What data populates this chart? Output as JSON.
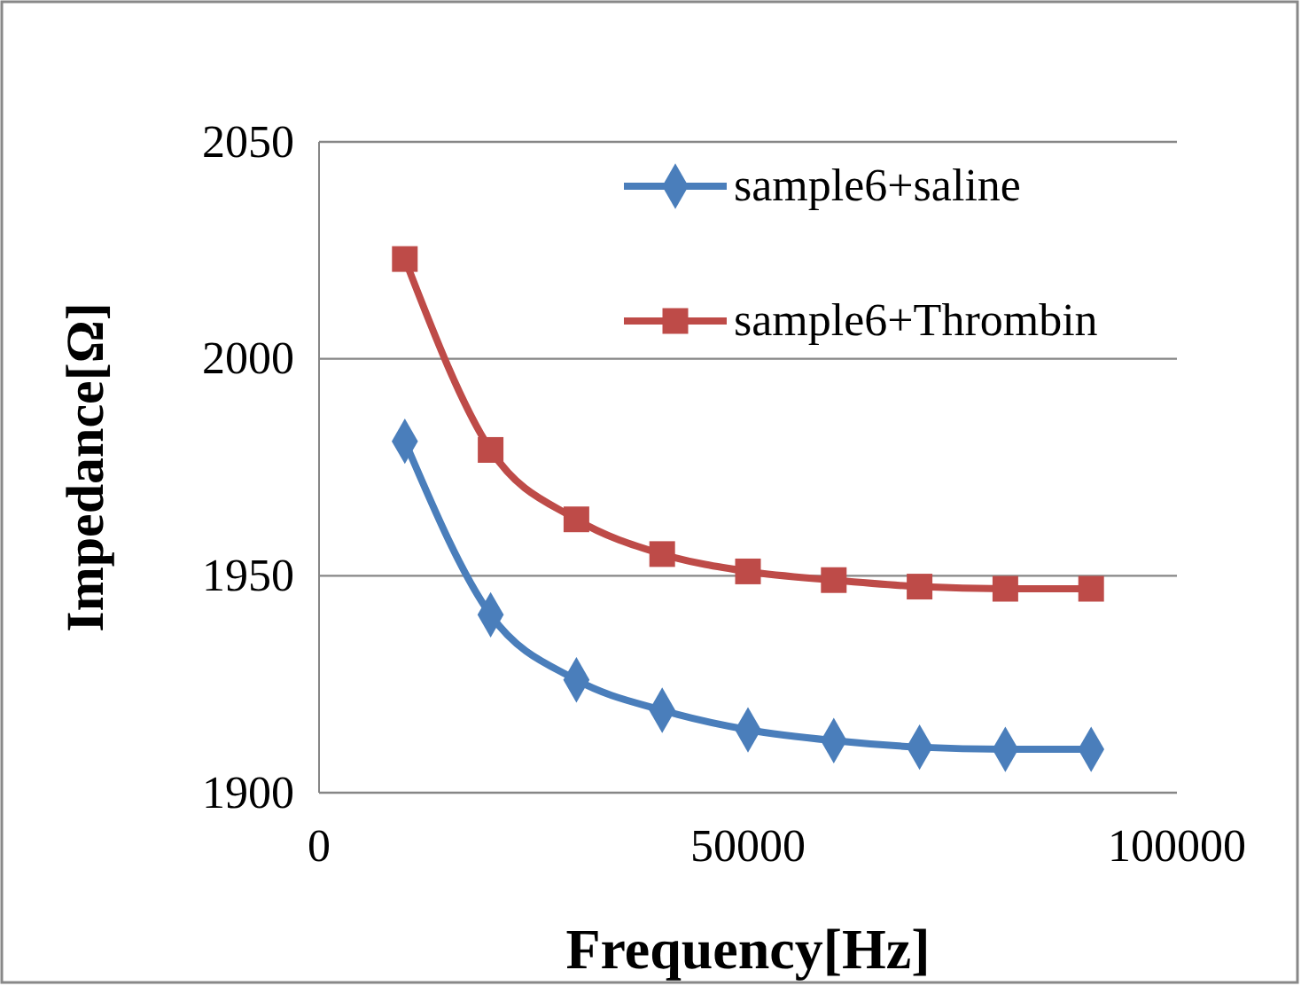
{
  "chart_data": {
    "type": "line",
    "xlabel": "Frequency[Hz]",
    "ylabel": "Impedance[Ω]",
    "x": [
      10000,
      20000,
      30000,
      40000,
      50000,
      60000,
      70000,
      80000,
      90000
    ],
    "series": [
      {
        "name": "sample6+saline",
        "color": "#4a7ebb",
        "marker": "diamond",
        "values": [
          1981,
          1941,
          1926,
          1919,
          1914.5,
          1912,
          1910.5,
          1910,
          1910
        ]
      },
      {
        "name": "sample6+Thrombin",
        "color": "#be4b48",
        "marker": "square",
        "values": [
          2023,
          1979,
          1963,
          1955,
          1951,
          1949,
          1947.5,
          1947,
          1947
        ]
      }
    ],
    "xlim": [
      0,
      100000
    ],
    "xticks": [
      0,
      50000,
      100000
    ],
    "ylim": [
      1900,
      2050
    ],
    "yticks": [
      1900,
      1950,
      2000,
      2050
    ],
    "grid": "y",
    "legend": "top right"
  }
}
